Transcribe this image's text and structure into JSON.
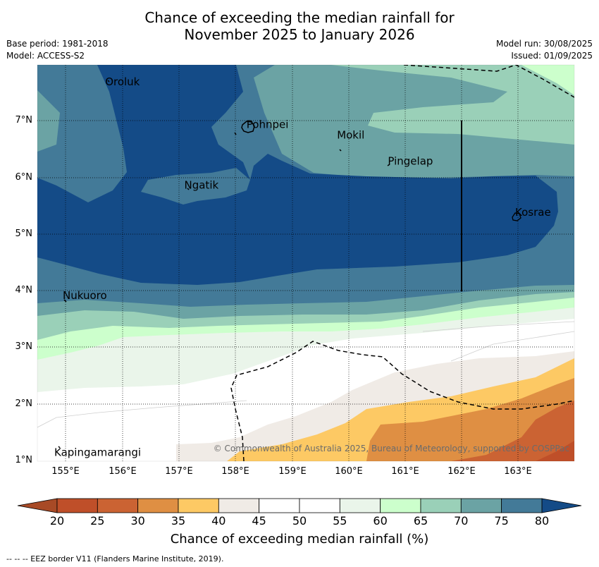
{
  "title_line1": "Chance of exceeding the median rainfall for",
  "title_line2": "November 2025 to January 2026",
  "meta_left": [
    "Base period: 1981-2018",
    "Model: ACCESS-S2"
  ],
  "meta_right": [
    "Model run: 30/08/2025",
    "Issued: 01/09/2025"
  ],
  "y_ticks": [
    "7°N",
    "6°N",
    "5°N",
    "4°N",
    "3°N",
    "2°N",
    "1°N"
  ],
  "x_ticks": [
    "155°E",
    "156°E",
    "157°E",
    "158°E",
    "159°E",
    "160°E",
    "161°E",
    "162°E",
    "163°E"
  ],
  "places": [
    {
      "name": "Oroluk",
      "lon": 155.7,
      "lat": 7.62
    },
    {
      "name": "Pohnpei",
      "lon": 158.2,
      "lat": 6.87
    },
    {
      "name": "Mokil",
      "lon": 159.8,
      "lat": 6.68
    },
    {
      "name": "Pingelap",
      "lon": 160.7,
      "lat": 6.22
    },
    {
      "name": "Ngatik",
      "lon": 157.1,
      "lat": 5.8
    },
    {
      "name": "Kosrae",
      "lon": 162.95,
      "lat": 5.32
    },
    {
      "name": "Nukuoro",
      "lon": 154.95,
      "lat": 3.85
    },
    {
      "name": "Kapingamarangi",
      "lon": 154.8,
      "lat": 1.08
    }
  ],
  "copyright": "© Commonwealth of Australia 2025, Bureau of Meteorology, supported by COSPPac",
  "colorbar": {
    "labels": [
      "20",
      "25",
      "30",
      "35",
      "40",
      "45",
      "50",
      "55",
      "60",
      "65",
      "70",
      "75",
      "80"
    ],
    "colors": {
      "below20": "#a84a26",
      "20-25": "#bf4f29",
      "25-30": "#cb6333",
      "30-35": "#df8f43",
      "35-40": "#fdc964",
      "40-45": "#f0ebe6",
      "45-50": "#ffffff",
      "50-55": "#ffffff",
      "55-60": "#eaf5ea",
      "60-65": "#ccffcc",
      "65-70": "#9ad0b8",
      "70-75": "#6ba3a4",
      "75-80": "#437a98",
      "above80": "#144b87"
    },
    "title": "Chance of exceeding median rainfall (%)"
  },
  "footer": "--  --  -- EEZ border V11 (Flanders Marine Institute, 2019)."
}
